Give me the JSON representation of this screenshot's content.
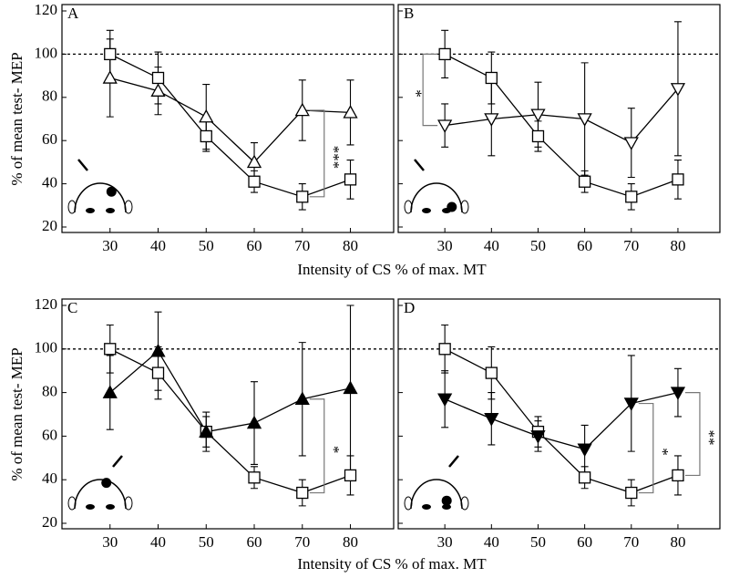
{
  "chart_data": [
    {
      "type": "line",
      "panel_label": "A",
      "y_label": "% of mean test- MEP",
      "x_label": "Intensity of CS % of max. MT",
      "x": [
        30,
        40,
        50,
        60,
        70,
        80
      ],
      "xticks": [
        30,
        40,
        50,
        60,
        70,
        80
      ],
      "xlim": [
        20,
        89
      ],
      "ylim": [
        20,
        120
      ],
      "yticks": [
        20,
        40,
        60,
        80,
        100,
        120
      ],
      "show_ytick_labels": true,
      "hline": 100,
      "head": "A",
      "series": [
        {
          "color": "#000000",
          "marker": "square-open",
          "values": [
            100,
            89,
            62,
            41,
            34,
            42
          ],
          "errors": [
            11,
            12,
            7,
            5,
            6,
            9
          ]
        },
        {
          "color": "#000000",
          "marker": "triangle-up-open",
          "values": [
            89,
            83,
            71,
            50,
            74,
            73
          ],
          "errors": [
            18,
            11,
            15,
            9,
            14,
            15
          ]
        }
      ],
      "annotations": [
        {
          "text": "***",
          "x": 70,
          "side": "right"
        }
      ]
    },
    {
      "type": "line",
      "panel_label": "B",
      "x": [
        30,
        40,
        50,
        60,
        70,
        80
      ],
      "xticks": [
        30,
        40,
        50,
        60,
        70,
        80
      ],
      "xlim": [
        20,
        89
      ],
      "ylim": [
        20,
        120
      ],
      "yticks": [
        20,
        40,
        60,
        80,
        100,
        120
      ],
      "show_ytick_labels": false,
      "hline": 100,
      "head": "B",
      "series": [
        {
          "color": "#000000",
          "marker": "square-open",
          "values": [
            100,
            89,
            62,
            41,
            34,
            42
          ],
          "errors": [
            11,
            12,
            7,
            5,
            6,
            9
          ]
        },
        {
          "color": "#000000",
          "marker": "triangle-down-open",
          "values": [
            67,
            70,
            72,
            70,
            59,
            84
          ],
          "errors": [
            10,
            17,
            15,
            26,
            16,
            31
          ]
        }
      ],
      "annotations": [
        {
          "text": "*",
          "x": 30,
          "side": "left"
        }
      ]
    },
    {
      "type": "line",
      "panel_label": "C",
      "y_label": "% of mean test- MEP",
      "x_label": "Intensity of CS % of max. MT",
      "x": [
        30,
        40,
        50,
        60,
        70,
        80
      ],
      "xticks": [
        30,
        40,
        50,
        60,
        70,
        80
      ],
      "xlim": [
        20,
        89
      ],
      "ylim": [
        20,
        120
      ],
      "yticks": [
        20,
        40,
        60,
        80,
        100,
        120
      ],
      "show_ytick_labels": true,
      "hline": 100,
      "head": "C",
      "series": [
        {
          "color": "#000000",
          "marker": "square-open",
          "values": [
            100,
            89,
            62,
            41,
            34,
            42
          ],
          "errors": [
            11,
            12,
            7,
            5,
            6,
            9
          ]
        },
        {
          "color": "#000000",
          "marker": "triangle-up-filled",
          "values": [
            80,
            99,
            62,
            66,
            77,
            82
          ],
          "errors": [
            17,
            18,
            9,
            19,
            26,
            38
          ]
        }
      ],
      "annotations": [
        {
          "text": "*",
          "x": 70,
          "side": "right"
        }
      ]
    },
    {
      "type": "line",
      "panel_label": "D",
      "x": [
        30,
        40,
        50,
        60,
        70,
        80
      ],
      "xticks": [
        30,
        40,
        50,
        60,
        70,
        80
      ],
      "xlim": [
        20,
        89
      ],
      "ylim": [
        20,
        120
      ],
      "yticks": [
        20,
        40,
        60,
        80,
        100,
        120
      ],
      "show_ytick_labels": false,
      "hline": 100,
      "head": "D",
      "series": [
        {
          "color": "#000000",
          "marker": "square-open",
          "values": [
            100,
            89,
            62,
            41,
            34,
            42
          ],
          "errors": [
            11,
            12,
            7,
            5,
            6,
            9
          ]
        },
        {
          "color": "#000000",
          "marker": "triangle-down-filled",
          "values": [
            77,
            68,
            60,
            54,
            75,
            80
          ],
          "errors": [
            13,
            12,
            7,
            11,
            22,
            11
          ]
        }
      ],
      "annotations": [
        {
          "text": "*",
          "x": 70,
          "side": "right"
        },
        {
          "text": "**",
          "x": 80,
          "side": "right"
        }
      ]
    }
  ]
}
